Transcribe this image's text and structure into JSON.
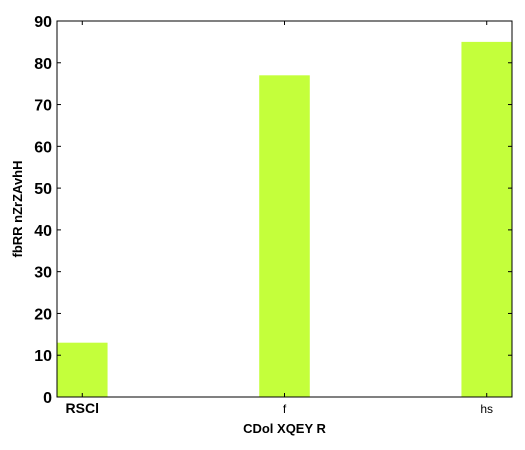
{
  "chart_data": {
    "type": "bar",
    "title": "",
    "xlabel": "CDol XQEY   R",
    "ylabel": "fbRR  nZrZAvhH",
    "categories": [
      "RSCl",
      "f",
      "hs"
    ],
    "category_label_bold": [
      true,
      false,
      false
    ],
    "values": [
      13,
      77,
      85
    ],
    "ylim": [
      0,
      90
    ],
    "yticks": [
      0,
      10,
      20,
      30,
      40,
      50,
      60,
      70,
      80,
      90
    ],
    "grid": false,
    "legend": "none",
    "bar_color": "#c4ff3b"
  }
}
